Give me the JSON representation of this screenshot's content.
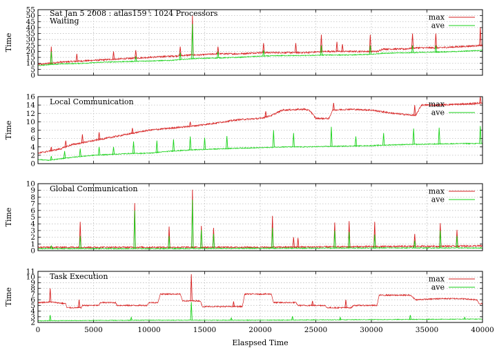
{
  "chart_data": [
    {
      "type": "line",
      "header": "Sat Jan 5 2008 : atlas159 : 1024 Processors",
      "title": "Waiting",
      "ylabel": "Time",
      "xlabel": "",
      "xlim": [
        0,
        40000
      ],
      "ylim": [
        0,
        55
      ],
      "yticks": [
        "0",
        "5",
        "10",
        "15",
        "20",
        "25",
        "30",
        "35",
        "40",
        "45",
        "50",
        "55"
      ],
      "legend_position": "top-right",
      "grid": true,
      "series": [
        {
          "name": "max",
          "color": "#d62020",
          "points": [
            [
              0,
              9
            ],
            [
              1000,
              10
            ],
            [
              2000,
              11
            ],
            [
              4000,
              12
            ],
            [
              6000,
              13
            ],
            [
              8000,
              14
            ],
            [
              10000,
              15
            ],
            [
              12000,
              16
            ],
            [
              13800,
              17
            ],
            [
              14500,
              17
            ],
            [
              16000,
              18
            ],
            [
              18000,
              18
            ],
            [
              20000,
              19
            ],
            [
              22000,
              19
            ],
            [
              24000,
              19
            ],
            [
              26000,
              20
            ],
            [
              28000,
              20
            ],
            [
              30000,
              20
            ],
            [
              30600,
              20
            ],
            [
              31000,
              22
            ],
            [
              33000,
              22
            ],
            [
              34000,
              23
            ],
            [
              36000,
              23
            ],
            [
              38000,
              24
            ],
            [
              40000,
              25
            ]
          ],
          "spikes": [
            [
              1200,
              24
            ],
            [
              3500,
              18
            ],
            [
              6800,
              20
            ],
            [
              8800,
              21
            ],
            [
              12800,
              24
            ],
            [
              13900,
              50
            ],
            [
              16200,
              24
            ],
            [
              20300,
              27
            ],
            [
              23200,
              27
            ],
            [
              25500,
              34
            ],
            [
              26900,
              28
            ],
            [
              27400,
              26
            ],
            [
              29900,
              34
            ],
            [
              33700,
              35
            ],
            [
              35800,
              35
            ],
            [
              39800,
              40
            ]
          ]
        },
        {
          "name": "ave",
          "color": "#19d219",
          "points": [
            [
              0,
              8
            ],
            [
              1000,
              9
            ],
            [
              2000,
              9.5
            ],
            [
              4000,
              10
            ],
            [
              6000,
              11
            ],
            [
              8000,
              11.5
            ],
            [
              10000,
              12
            ],
            [
              12000,
              12.5
            ],
            [
              14000,
              14
            ],
            [
              16000,
              14.5
            ],
            [
              18000,
              15
            ],
            [
              20000,
              16
            ],
            [
              22000,
              16.5
            ],
            [
              24000,
              16.5
            ],
            [
              26000,
              17
            ],
            [
              28000,
              17
            ],
            [
              30000,
              17.5
            ],
            [
              31000,
              18.5
            ],
            [
              34000,
              19
            ],
            [
              36000,
              19.5
            ],
            [
              38000,
              20
            ],
            [
              40000,
              21
            ]
          ],
          "spikes": [
            [
              1200,
              20
            ],
            [
              8800,
              16
            ],
            [
              12800,
              19
            ],
            [
              13900,
              43
            ],
            [
              16200,
              20
            ],
            [
              20300,
              21
            ],
            [
              25500,
              25
            ],
            [
              29900,
              25
            ],
            [
              33700,
              25
            ],
            [
              35800,
              25
            ]
          ]
        }
      ]
    },
    {
      "type": "line",
      "title": "Local Communication",
      "ylabel": "Time",
      "xlabel": "",
      "xlim": [
        0,
        40000
      ],
      "ylim": [
        0,
        16
      ],
      "yticks": [
        "0",
        "2",
        "4",
        "6",
        "8",
        "10",
        "12",
        "14",
        "16"
      ],
      "legend_position": "top-right",
      "grid": true,
      "series": [
        {
          "name": "max",
          "color": "#d62020",
          "points": [
            [
              0,
              2.5
            ],
            [
              1000,
              3
            ],
            [
              2000,
              3.5
            ],
            [
              3000,
              4.5
            ],
            [
              4000,
              5
            ],
            [
              5000,
              5.5
            ],
            [
              6000,
              6
            ],
            [
              7000,
              6.5
            ],
            [
              8000,
              7
            ],
            [
              9000,
              7.5
            ],
            [
              10000,
              8
            ],
            [
              12000,
              8.5
            ],
            [
              14000,
              9
            ],
            [
              16000,
              9.7
            ],
            [
              18000,
              10.5
            ],
            [
              20000,
              10.8
            ],
            [
              21000,
              11.5
            ],
            [
              22000,
              12.8
            ],
            [
              24000,
              13
            ],
            [
              24500,
              12.6
            ],
            [
              25000,
              10.8
            ],
            [
              26000,
              10.8
            ],
            [
              26200,
              10.8
            ],
            [
              26500,
              12.8
            ],
            [
              28000,
              13
            ],
            [
              30000,
              12.8
            ],
            [
              32000,
              12
            ],
            [
              34000,
              11.5
            ],
            [
              34500,
              14
            ],
            [
              36000,
              14
            ],
            [
              38000,
              14.2
            ],
            [
              40000,
              14.5
            ]
          ],
          "spikes": [
            [
              1200,
              4
            ],
            [
              2500,
              5.5
            ],
            [
              4000,
              7
            ],
            [
              5500,
              7.5
            ],
            [
              8500,
              8.5
            ],
            [
              13700,
              10
            ],
            [
              20500,
              12.5
            ],
            [
              26600,
              14.5
            ],
            [
              33900,
              14
            ],
            [
              39800,
              16
            ]
          ]
        },
        {
          "name": "ave",
          "color": "#19d219",
          "points": [
            [
              0,
              1
            ],
            [
              1000,
              0.8
            ],
            [
              3000,
              1.5
            ],
            [
              5000,
              2
            ],
            [
              8000,
              2.4
            ],
            [
              10000,
              2.5
            ],
            [
              12000,
              3
            ],
            [
              14000,
              3.3
            ],
            [
              16000,
              3.5
            ],
            [
              18000,
              3.7
            ],
            [
              20000,
              3.8
            ],
            [
              22000,
              4
            ],
            [
              24000,
              4
            ],
            [
              26000,
              4.1
            ],
            [
              28000,
              4.2
            ],
            [
              30000,
              4.3
            ],
            [
              32000,
              4.5
            ],
            [
              34000,
              4.6
            ],
            [
              36000,
              4.7
            ],
            [
              38000,
              4.8
            ],
            [
              40000,
              4.8
            ]
          ],
          "spikes": [
            [
              1200,
              1.8
            ],
            [
              2400,
              3
            ],
            [
              3800,
              3.6
            ],
            [
              5500,
              4
            ],
            [
              6800,
              4
            ],
            [
              8600,
              5.3
            ],
            [
              10700,
              5.5
            ],
            [
              12200,
              5.8
            ],
            [
              13700,
              6.5
            ],
            [
              15000,
              6.2
            ],
            [
              17000,
              6.6
            ],
            [
              21200,
              8
            ],
            [
              23000,
              7.3
            ],
            [
              26400,
              8.8
            ],
            [
              28600,
              6.5
            ],
            [
              31100,
              7.3
            ],
            [
              33800,
              8.4
            ],
            [
              36100,
              8.6
            ],
            [
              39800,
              9
            ]
          ]
        }
      ]
    },
    {
      "type": "line",
      "title": "Global Communication",
      "ylabel": "Time",
      "xlabel": "",
      "xlim": [
        0,
        40000
      ],
      "ylim": [
        0,
        10
      ],
      "yticks": [
        "0",
        "1",
        "2",
        "3",
        "4",
        "5",
        "6",
        "7",
        "8",
        "9",
        "10"
      ],
      "legend_position": "top-right",
      "grid": true,
      "series": [
        {
          "name": "max",
          "color": "#d62020",
          "points": [
            [
              0,
              0.5
            ],
            [
              10000,
              0.5
            ],
            [
              20000,
              0.5
            ],
            [
              30000,
              0.6
            ],
            [
              40000,
              0.7
            ]
          ],
          "spikes": [
            [
              3800,
              4.3
            ],
            [
              8700,
              7.1
            ],
            [
              11800,
              3.6
            ],
            [
              13900,
              9.1
            ],
            [
              14700,
              3.7
            ],
            [
              15800,
              3.4
            ],
            [
              21100,
              5.2
            ],
            [
              23000,
              2.0
            ],
            [
              23400,
              1.9
            ],
            [
              26700,
              4.2
            ],
            [
              28000,
              4.4
            ],
            [
              30300,
              4.3
            ],
            [
              33900,
              2.5
            ],
            [
              36200,
              4.1
            ],
            [
              37700,
              3.1
            ]
          ]
        },
        {
          "name": "ave",
          "color": "#19d219",
          "points": [
            [
              0,
              0.3
            ],
            [
              10000,
              0.3
            ],
            [
              20000,
              0.35
            ],
            [
              30000,
              0.4
            ],
            [
              40000,
              0.4
            ]
          ],
          "spikes": [
            [
              1200,
              0.7
            ],
            [
              3800,
              2.2
            ],
            [
              8700,
              6.0
            ],
            [
              11800,
              2.2
            ],
            [
              13900,
              7.6
            ],
            [
              14700,
              3.1
            ],
            [
              15800,
              2.5
            ],
            [
              21100,
              3.4
            ],
            [
              26700,
              3.0
            ],
            [
              28000,
              2.8
            ],
            [
              30300,
              2.4
            ],
            [
              33900,
              1.5
            ],
            [
              36200,
              3.0
            ],
            [
              37700,
              2.2
            ]
          ]
        }
      ]
    },
    {
      "type": "line",
      "title": "Task Execution",
      "ylabel": "Time",
      "xlabel": "Elaspsed Time",
      "xlim": [
        0,
        40000
      ],
      "ylim": [
        2,
        11
      ],
      "xticks": [
        "0",
        "5000",
        "10000",
        "15000",
        "20000",
        "25000",
        "30000",
        "35000",
        "40000"
      ],
      "yticks": [
        "2",
        "3",
        "4",
        "5",
        "6",
        "7",
        "8",
        "9",
        "10",
        "11"
      ],
      "legend_position": "top-right",
      "grid": true,
      "series": [
        {
          "name": "max",
          "color": "#d62020",
          "points": [
            [
              0,
              5.5
            ],
            [
              1200,
              5.6
            ],
            [
              2500,
              5.3
            ],
            [
              2600,
              4.6
            ],
            [
              3900,
              4.6
            ],
            [
              4000,
              5
            ],
            [
              5500,
              5
            ],
            [
              5600,
              5.5
            ],
            [
              7000,
              5.5
            ],
            [
              7100,
              5
            ],
            [
              9800,
              5
            ],
            [
              10000,
              5.5
            ],
            [
              10800,
              5.5
            ],
            [
              11000,
              7
            ],
            [
              12800,
              7
            ],
            [
              13000,
              5.8
            ],
            [
              14600,
              5.8
            ],
            [
              14800,
              4.8
            ],
            [
              18400,
              4.8
            ],
            [
              18600,
              7
            ],
            [
              21000,
              7
            ],
            [
              21200,
              5.5
            ],
            [
              23200,
              5.5
            ],
            [
              23400,
              5
            ],
            [
              25800,
              5
            ],
            [
              26000,
              4.6
            ],
            [
              28200,
              4.6
            ],
            [
              28400,
              5
            ],
            [
              30500,
              5
            ],
            [
              30700,
              6.8
            ],
            [
              33500,
              6.8
            ],
            [
              34000,
              6
            ],
            [
              36200,
              6.2
            ],
            [
              38000,
              6.2
            ],
            [
              39500,
              6
            ],
            [
              39700,
              5.3
            ]
          ],
          "spikes": [
            [
              1100,
              8
            ],
            [
              3700,
              6
            ],
            [
              13800,
              10.5
            ],
            [
              17600,
              5.7
            ],
            [
              24700,
              5.8
            ],
            [
              27700,
              6
            ]
          ]
        },
        {
          "name": "ave",
          "color": "#19d219",
          "points": [
            [
              0,
              2.3
            ],
            [
              10000,
              2.4
            ],
            [
              20000,
              2.4
            ],
            [
              30000,
              2.5
            ],
            [
              40000,
              2.6
            ]
          ],
          "spikes": [
            [
              1100,
              3.3
            ],
            [
              8400,
              2.9
            ],
            [
              13800,
              5.6
            ],
            [
              17400,
              2.8
            ],
            [
              22900,
              3.1
            ],
            [
              27200,
              2.9
            ],
            [
              33500,
              3.3
            ],
            [
              38400,
              2.9
            ]
          ]
        }
      ]
    }
  ]
}
